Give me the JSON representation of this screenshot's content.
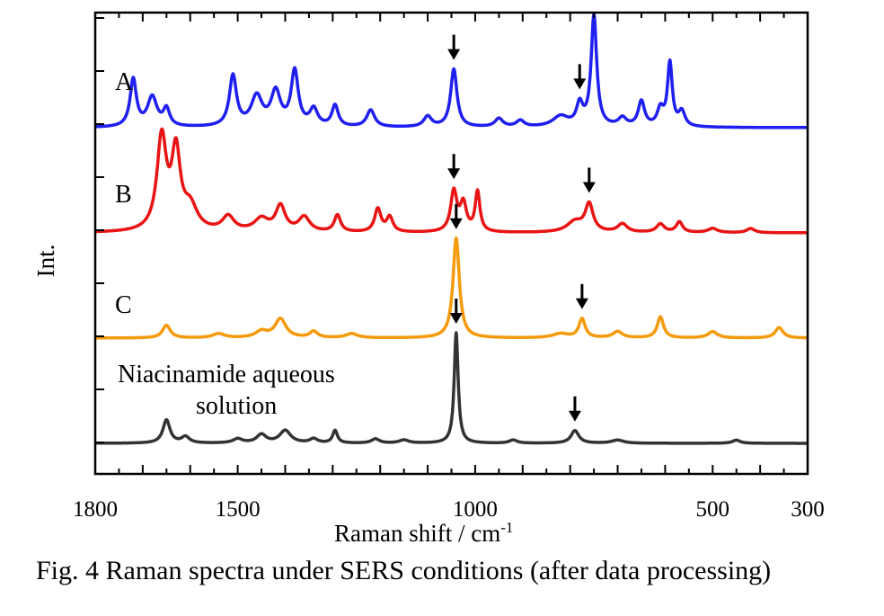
{
  "caption": "Fig. 4   Raman spectra under SERS conditions (after data processing)",
  "chart_data": {
    "type": "line",
    "xlabel": "Raman shift / cm",
    "xlabel_superscript": "-1",
    "ylabel": "Int.",
    "xlim": [
      1800,
      300
    ],
    "x_reversed": true,
    "xticks": [
      1800,
      1500,
      1000,
      500,
      300
    ],
    "xticks_unlabeled": [
      1750,
      1700,
      1650,
      1600,
      1550,
      1450,
      1400,
      1350,
      1300,
      1250,
      1200,
      1150,
      1100,
      1050,
      950,
      900,
      850,
      800,
      750,
      700,
      650,
      600,
      550,
      450,
      400,
      350
    ],
    "grid": false,
    "legend": "none",
    "series": [
      {
        "name": "A",
        "color": "#1f1fef",
        "baseline": 4.0,
        "peaks": [
          [
            1720,
            0.45,
            8
          ],
          [
            1680,
            0.28,
            12
          ],
          [
            1650,
            0.16,
            8
          ],
          [
            1510,
            0.48,
            9
          ],
          [
            1460,
            0.28,
            14
          ],
          [
            1420,
            0.32,
            12
          ],
          [
            1380,
            0.52,
            9
          ],
          [
            1340,
            0.16,
            10
          ],
          [
            1295,
            0.2,
            8
          ],
          [
            1220,
            0.16,
            10
          ],
          [
            1100,
            0.1,
            10
          ],
          [
            1045,
            0.55,
            8
          ],
          [
            950,
            0.08,
            10
          ],
          [
            905,
            0.06,
            10
          ],
          [
            820,
            0.1,
            20
          ],
          [
            780,
            0.2,
            8
          ],
          [
            750,
            1.05,
            7
          ],
          [
            690,
            0.08,
            10
          ],
          [
            650,
            0.24,
            8
          ],
          [
            610,
            0.16,
            8
          ],
          [
            590,
            0.6,
            6
          ],
          [
            565,
            0.14,
            8
          ]
        ]
      },
      {
        "name": "B",
        "color": "#e81414",
        "baseline": 3.0,
        "peaks": [
          [
            1660,
            0.88,
            12
          ],
          [
            1630,
            0.72,
            11
          ],
          [
            1600,
            0.22,
            18
          ],
          [
            1520,
            0.14,
            15
          ],
          [
            1450,
            0.12,
            18
          ],
          [
            1410,
            0.24,
            12
          ],
          [
            1360,
            0.14,
            14
          ],
          [
            1290,
            0.16,
            8
          ],
          [
            1205,
            0.22,
            8
          ],
          [
            1180,
            0.14,
            8
          ],
          [
            1045,
            0.38,
            8
          ],
          [
            1025,
            0.26,
            8
          ],
          [
            995,
            0.38,
            6
          ],
          [
            790,
            0.1,
            20
          ],
          [
            760,
            0.26,
            10
          ],
          [
            690,
            0.08,
            12
          ],
          [
            610,
            0.08,
            10
          ],
          [
            570,
            0.1,
            8
          ],
          [
            500,
            0.04,
            12
          ],
          [
            420,
            0.04,
            10
          ]
        ]
      },
      {
        "name": "C",
        "color": "#f59a0b",
        "baseline": 2.0,
        "peaks": [
          [
            1650,
            0.12,
            10
          ],
          [
            1540,
            0.04,
            15
          ],
          [
            1450,
            0.06,
            15
          ],
          [
            1410,
            0.18,
            14
          ],
          [
            1340,
            0.06,
            10
          ],
          [
            1260,
            0.04,
            15
          ],
          [
            1040,
            0.95,
            8
          ],
          [
            820,
            0.04,
            20
          ],
          [
            775,
            0.18,
            8
          ],
          [
            700,
            0.06,
            12
          ],
          [
            610,
            0.2,
            8
          ],
          [
            500,
            0.06,
            12
          ],
          [
            360,
            0.1,
            10
          ]
        ]
      },
      {
        "name": "Niacinamide aqueous solution",
        "color": "#333333",
        "baseline": 1.0,
        "peaks": [
          [
            1650,
            0.22,
            9
          ],
          [
            1610,
            0.06,
            10
          ],
          [
            1500,
            0.04,
            12
          ],
          [
            1450,
            0.08,
            12
          ],
          [
            1400,
            0.12,
            14
          ],
          [
            1340,
            0.04,
            10
          ],
          [
            1295,
            0.12,
            6
          ],
          [
            1210,
            0.04,
            10
          ],
          [
            1150,
            0.03,
            12
          ],
          [
            1040,
            1.05,
            5
          ],
          [
            920,
            0.03,
            10
          ],
          [
            790,
            0.12,
            10
          ],
          [
            700,
            0.03,
            15
          ],
          [
            450,
            0.03,
            10
          ]
        ]
      }
    ],
    "series_labels": [
      "A",
      "B",
      "C",
      "Niacinamide aqueous",
      "solution"
    ],
    "arrows_at": [
      {
        "series": "A",
        "x": [
          1045,
          780
        ]
      },
      {
        "series": "B",
        "x": [
          1045,
          760
        ]
      },
      {
        "series": "C",
        "x": [
          1040,
          775
        ]
      },
      {
        "series": "Niacinamide aqueous solution",
        "x": [
          1040,
          790
        ]
      }
    ]
  }
}
